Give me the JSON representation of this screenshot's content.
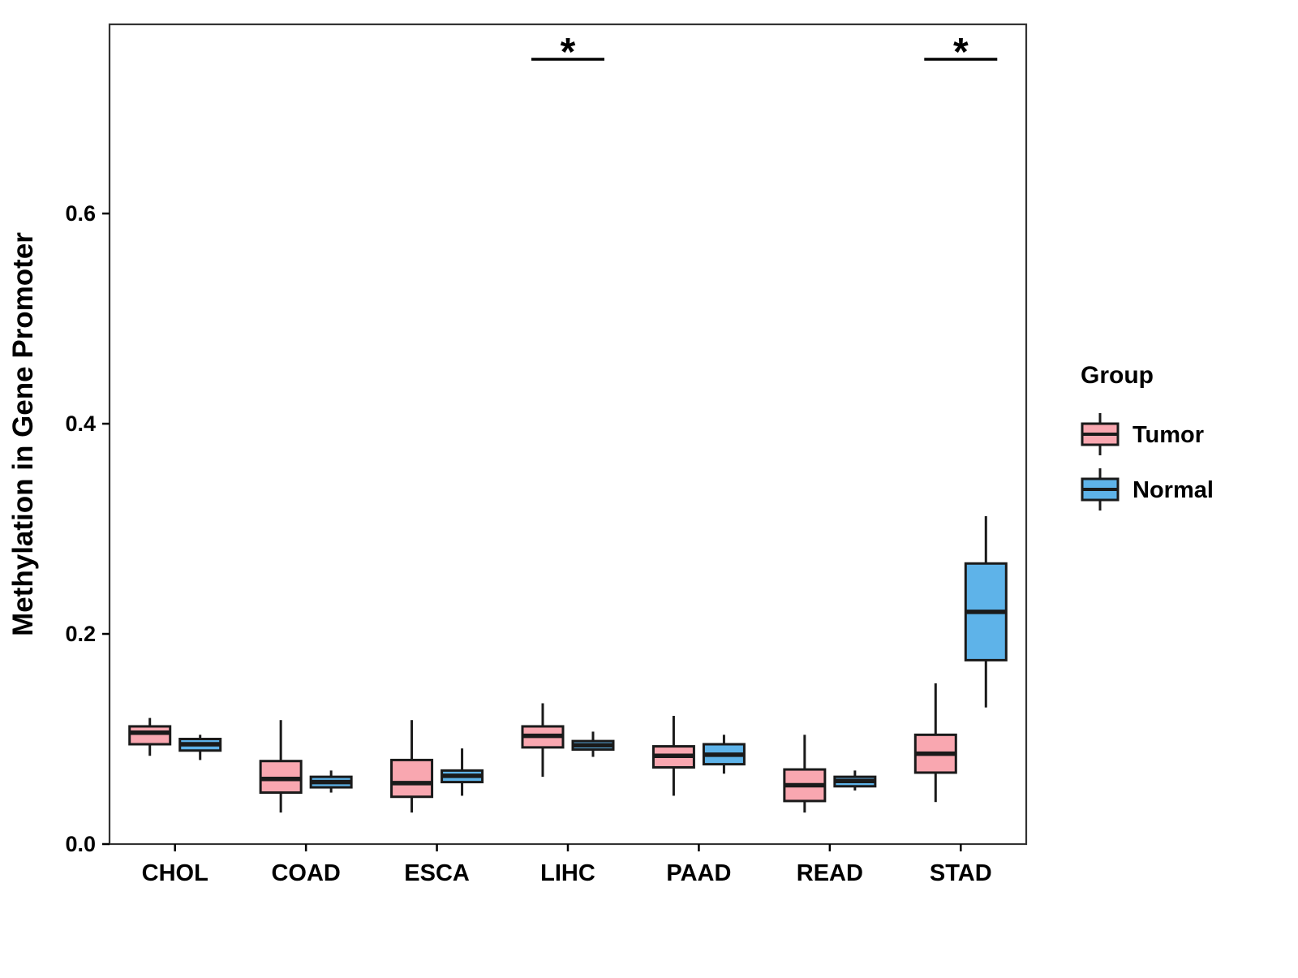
{
  "chart_data": {
    "type": "boxplot",
    "title": "",
    "xlabel": "",
    "ylabel": "Methylation in Gene Promoter",
    "categories": [
      "CHOL",
      "COAD",
      "ESCA",
      "LIHC",
      "PAAD",
      "READ",
      "STAD"
    ],
    "y_ticks": [
      {
        "value": 0.0,
        "label": "0.0"
      },
      {
        "value": 0.2,
        "label": "0.2"
      },
      {
        "value": 0.4,
        "label": "0.4"
      },
      {
        "value": 0.6,
        "label": "0.6"
      }
    ],
    "ylim": [
      0,
      0.78
    ],
    "grid": false,
    "legend": {
      "title": "Group",
      "position": "right",
      "entries": [
        {
          "name": "Tumor",
          "color": "#F9A7B0"
        },
        {
          "name": "Normal",
          "color": "#5EB3E9"
        }
      ]
    },
    "series": [
      {
        "name": "Tumor",
        "color": "#F9A7B0",
        "boxes": [
          {
            "category": "CHOL",
            "low": 0.084,
            "q1": 0.095,
            "median": 0.106,
            "q3": 0.112,
            "high": 0.12
          },
          {
            "category": "COAD",
            "low": 0.03,
            "q1": 0.049,
            "median": 0.062,
            "q3": 0.079,
            "high": 0.118
          },
          {
            "category": "ESCA",
            "low": 0.03,
            "q1": 0.045,
            "median": 0.058,
            "q3": 0.08,
            "high": 0.118
          },
          {
            "category": "LIHC",
            "low": 0.064,
            "q1": 0.092,
            "median": 0.103,
            "q3": 0.112,
            "high": 0.134
          },
          {
            "category": "PAAD",
            "low": 0.046,
            "q1": 0.073,
            "median": 0.084,
            "q3": 0.093,
            "high": 0.122
          },
          {
            "category": "READ",
            "low": 0.03,
            "q1": 0.041,
            "median": 0.056,
            "q3": 0.071,
            "high": 0.104
          },
          {
            "category": "STAD",
            "low": 0.04,
            "q1": 0.068,
            "median": 0.086,
            "q3": 0.104,
            "high": 0.153
          }
        ]
      },
      {
        "name": "Normal",
        "color": "#5EB3E9",
        "boxes": [
          {
            "category": "CHOL",
            "low": 0.08,
            "q1": 0.089,
            "median": 0.095,
            "q3": 0.1,
            "high": 0.104
          },
          {
            "category": "COAD",
            "low": 0.049,
            "q1": 0.054,
            "median": 0.059,
            "q3": 0.064,
            "high": 0.07
          },
          {
            "category": "ESCA",
            "low": 0.046,
            "q1": 0.059,
            "median": 0.065,
            "q3": 0.07,
            "high": 0.091
          },
          {
            "category": "LIHC",
            "low": 0.083,
            "q1": 0.09,
            "median": 0.094,
            "q3": 0.098,
            "high": 0.107
          },
          {
            "category": "PAAD",
            "low": 0.067,
            "q1": 0.076,
            "median": 0.085,
            "q3": 0.095,
            "high": 0.104
          },
          {
            "category": "READ",
            "low": 0.051,
            "q1": 0.055,
            "median": 0.06,
            "q3": 0.064,
            "high": 0.07
          },
          {
            "category": "STAD",
            "low": 0.13,
            "q1": 0.175,
            "median": 0.221,
            "q3": 0.267,
            "high": 0.312
          }
        ]
      }
    ],
    "significance": [
      {
        "category": "LIHC",
        "label": "*"
      },
      {
        "category": "STAD",
        "label": "*"
      }
    ],
    "style": {
      "box_stroke": "#1A1A1A",
      "panel_border": "#333333",
      "text_color": "#000000",
      "background": "#FFFFFF"
    }
  }
}
